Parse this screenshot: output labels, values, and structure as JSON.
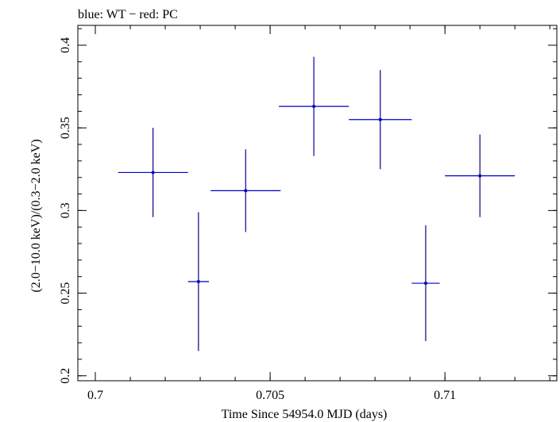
{
  "chart_data": {
    "type": "scatter",
    "title": "blue: WT − red: PC",
    "xlabel": "Time Since 54954.0 MJD (days)",
    "ylabel": "(2.0−10.0 keV)/(0.3−2.0 keV)",
    "xlim": [
      0.6995,
      0.7132
    ],
    "ylim": [
      0.197,
      0.412
    ],
    "xticks": [
      {
        "value": 0.7,
        "label": "0.7"
      },
      {
        "value": 0.705,
        "label": "0.705"
      },
      {
        "value": 0.71,
        "label": "0.71"
      }
    ],
    "yticks": [
      {
        "value": 0.2,
        "label": "0.2"
      },
      {
        "value": 0.25,
        "label": "0.25"
      },
      {
        "value": 0.3,
        "label": "0.3"
      },
      {
        "value": 0.35,
        "label": "0.35"
      },
      {
        "value": 0.4,
        "label": "0.4"
      }
    ],
    "x_minor_step": 0.001,
    "y_minor_step": 0.01,
    "grid": false,
    "series": [
      {
        "color": "#0000cc",
        "points": [
          {
            "x": 0.70165,
            "xerr": 0.001,
            "y": 0.323,
            "yerr": 0.027
          },
          {
            "x": 0.70295,
            "xerr": 0.0003,
            "y": 0.257,
            "yerr": 0.042
          },
          {
            "x": 0.7043,
            "xerr": 0.001,
            "y": 0.312,
            "yerr": 0.025
          },
          {
            "x": 0.70625,
            "xerr": 0.001,
            "y": 0.363,
            "yerr": 0.03
          },
          {
            "x": 0.70815,
            "xerr": 0.0009,
            "y": 0.355,
            "yerr": 0.03
          },
          {
            "x": 0.70945,
            "xerr": 0.0004,
            "y": 0.256,
            "yerr": 0.035
          },
          {
            "x": 0.711,
            "xerr": 0.001,
            "y": 0.321,
            "yerr": 0.025
          }
        ]
      }
    ]
  }
}
